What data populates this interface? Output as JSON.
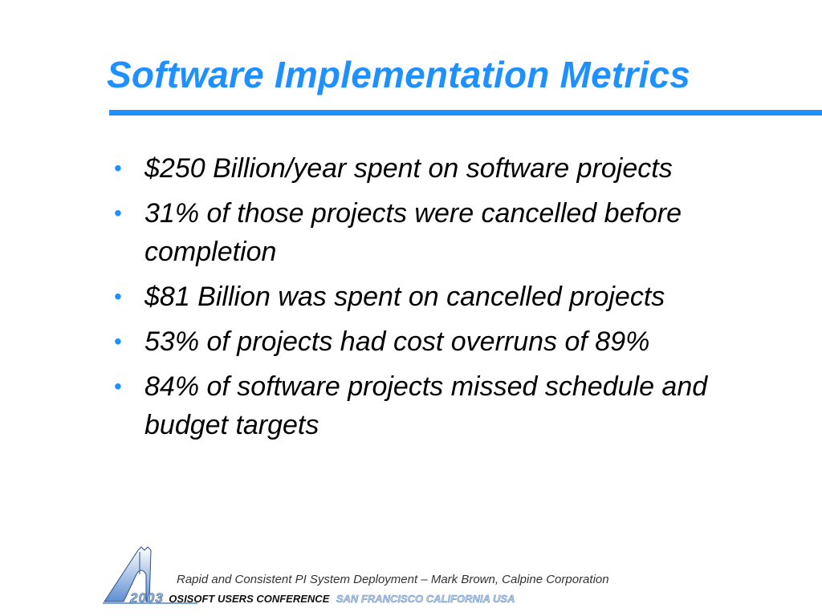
{
  "slide": {
    "title": "Software Implementation Metrics",
    "bullets": [
      "$250 Billion/year spent on software projects",
      "31% of those projects were cancelled before completion",
      "$81 Billion was spent on cancelled projects",
      "53% of projects had cost overruns of 89%",
      "84% of software projects missed schedule and budget targets"
    ],
    "bullet_glyph": "•"
  },
  "footer": {
    "caption": "Rapid and Consistent PI System Deployment – Mark Brown, Calpine Corporation",
    "year": "2003",
    "conference": "OSISOFT USERS CONFERENCE",
    "location": "SAN FRANCISCO CALIFORNIA USA",
    "logo_icon": "bridge-tower-logo-icon"
  },
  "colors": {
    "accent": "#1e90ff",
    "text": "#000000",
    "background": "#ffffff"
  }
}
